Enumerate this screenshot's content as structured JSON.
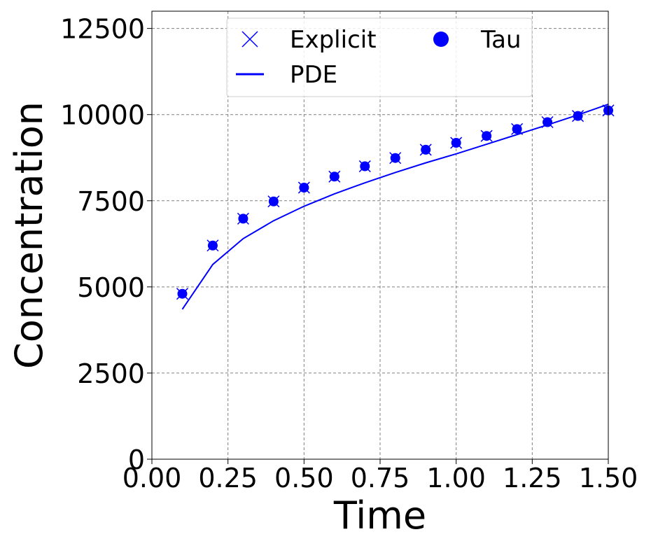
{
  "chart_data": {
    "type": "line",
    "xlabel": "Time",
    "ylabel": "Concentration",
    "xlim": [
      0.0,
      1.5
    ],
    "ylim": [
      0,
      13000
    ],
    "x_ticks": [
      "0.00",
      "0.25",
      "0.50",
      "0.75",
      "1.00",
      "1.25",
      "1.50"
    ],
    "y_ticks": [
      "0",
      "2500",
      "5000",
      "7500",
      "10000",
      "12500"
    ],
    "grid": true,
    "legend_position": "top-center",
    "series": [
      {
        "name": "Explicit",
        "kind": "scatter",
        "marker": "x",
        "color": "#0000ff",
        "x": [
          0.1,
          0.2,
          0.3,
          0.4,
          0.5,
          0.6,
          0.7,
          0.8,
          0.9,
          1.0,
          1.1,
          1.2,
          1.3,
          1.4,
          1.5
        ],
        "y": [
          4800,
          6200,
          6980,
          7480,
          7880,
          8200,
          8500,
          8740,
          8980,
          9180,
          9380,
          9580,
          9780,
          9960,
          10120
        ]
      },
      {
        "name": "PDE",
        "kind": "line",
        "color": "#0000ff",
        "x": [
          0.1,
          0.2,
          0.3,
          0.4,
          0.5,
          0.6,
          0.7,
          0.8,
          0.9,
          1.0,
          1.1,
          1.2,
          1.3,
          1.4,
          1.5
        ],
        "y": [
          4350,
          5650,
          6400,
          6920,
          7340,
          7700,
          8020,
          8320,
          8600,
          8860,
          9140,
          9420,
          9700,
          9990,
          10300
        ]
      },
      {
        "name": "Tau",
        "kind": "scatter",
        "marker": "circle",
        "color": "#0000ff",
        "x": [
          0.1,
          0.2,
          0.3,
          0.4,
          0.5,
          0.6,
          0.7,
          0.8,
          0.9,
          1.0,
          1.1,
          1.2,
          1.3,
          1.4,
          1.5
        ],
        "y": [
          4800,
          6200,
          6980,
          7480,
          7880,
          8200,
          8500,
          8740,
          8980,
          9180,
          9380,
          9580,
          9780,
          9960,
          10120
        ]
      }
    ],
    "legend_order": [
      "Explicit",
      "Tau",
      "PDE"
    ]
  }
}
